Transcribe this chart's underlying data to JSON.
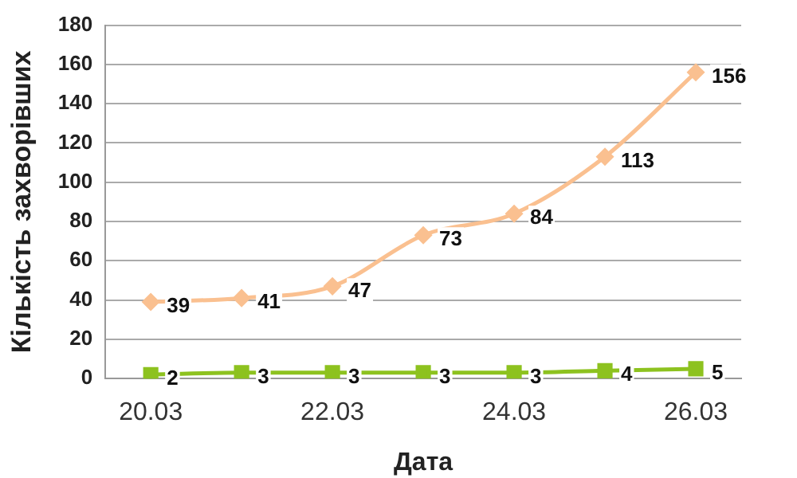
{
  "chart_data": {
    "type": "line",
    "xlabel": "Дата",
    "ylabel": "Кількість захворівших",
    "categories": [
      "20.03",
      null,
      "22.03",
      null,
      "24.03",
      null,
      "26.03"
    ],
    "series": [
      {
        "color": "#fac090",
        "values": [
          39,
          41,
          47,
          73,
          84,
          113,
          156
        ],
        "marker": "diamond"
      },
      {
        "color": "#8dc21f",
        "values": [
          2,
          3,
          3,
          3,
          3,
          4,
          5
        ],
        "marker": "square"
      }
    ],
    "ylim": [
      0,
      180
    ],
    "yticks": [
      0,
      20,
      40,
      60,
      80,
      100,
      120,
      140,
      160,
      180
    ],
    "grid": "y",
    "legend": false,
    "data_labels": true
  }
}
